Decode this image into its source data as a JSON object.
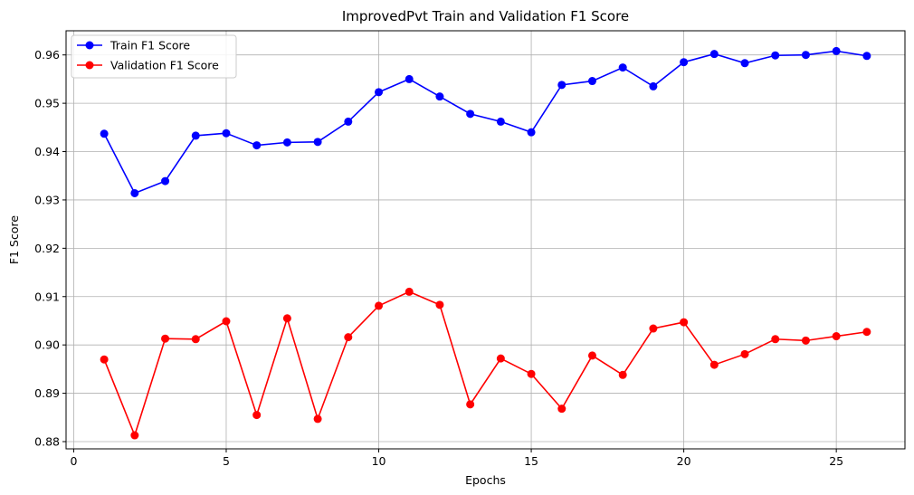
{
  "chart_data": {
    "type": "line",
    "title": "ImprovedPvt Train and Validation F1 Score",
    "xlabel": "Epochs",
    "ylabel": "F1 Score",
    "xlim": [
      -0.25,
      27.25
    ],
    "ylim": [
      0.8785,
      0.965
    ],
    "xticks": [
      0,
      5,
      10,
      15,
      20,
      25
    ],
    "yticks": [
      0.88,
      0.89,
      0.9,
      0.91,
      0.92,
      0.93,
      0.94,
      0.95,
      0.96
    ],
    "ytick_labels": [
      "0.88",
      "0.89",
      "0.90",
      "0.91",
      "0.92",
      "0.93",
      "0.94",
      "0.95",
      "0.96"
    ],
    "grid": true,
    "legend_position": "top-left",
    "x": [
      1,
      2,
      3,
      4,
      5,
      6,
      7,
      8,
      9,
      10,
      11,
      12,
      13,
      14,
      15,
      16,
      17,
      18,
      19,
      20,
      21,
      22,
      23,
      24,
      25,
      26
    ],
    "series": [
      {
        "name": "Train F1 Score",
        "color": "#0000ff",
        "values": [
          0.9437,
          0.9314,
          0.9339,
          0.9433,
          0.9438,
          0.9413,
          0.9419,
          0.942,
          0.9462,
          0.9523,
          0.955,
          0.9514,
          0.9478,
          0.9462,
          0.944,
          0.9538,
          0.9546,
          0.9574,
          0.9535,
          0.9585,
          0.9602,
          0.9583,
          0.9599,
          0.96,
          0.9608,
          0.9598
        ]
      },
      {
        "name": "Validation F1 Score",
        "color": "#ff0000",
        "values": [
          0.897,
          0.8813,
          0.9013,
          0.9012,
          0.9049,
          0.8855,
          0.9055,
          0.8847,
          0.9016,
          0.9081,
          0.911,
          0.9083,
          0.8877,
          0.8972,
          0.894,
          0.8868,
          0.8978,
          0.8938,
          0.9034,
          0.9047,
          0.8959,
          0.8981,
          0.9012,
          0.9009,
          0.9018,
          0.9027
        ]
      }
    ]
  }
}
